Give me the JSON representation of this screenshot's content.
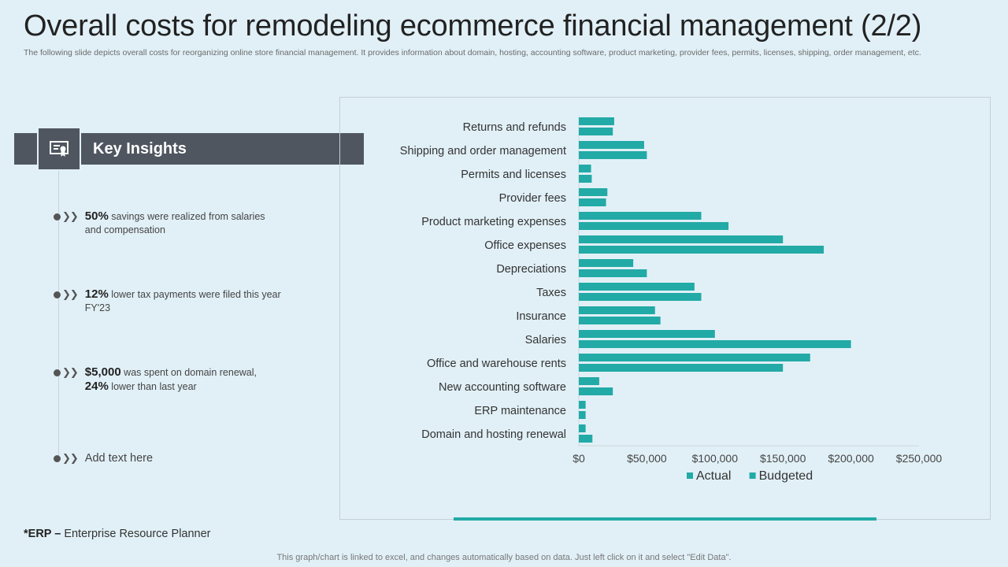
{
  "title": "Overall costs for remodeling ecommerce financial management (2/2)",
  "subtitle": "The following slide depicts overall costs for reorganizing online store financial management. It provides information about domain, hosting, accounting software, product marketing, provider fees, permits, licenses, shipping, order management, etc.",
  "insights": {
    "heading": "Key Insights",
    "items": [
      {
        "highlight": "50%",
        "text": " savings were realized from salaries and compensation"
      },
      {
        "highlight": "12%",
        "text": " lower tax payments were filed this year FY'23"
      },
      {
        "highlight": "$5,000",
        "text": " was spent on domain renewal,",
        "highlight2": "24%",
        "text2": " lower than last year"
      },
      {
        "text": "Add text here"
      }
    ]
  },
  "footnote": {
    "term": "*ERP –",
    "definition": " Enterprise Resource Planner"
  },
  "bottom_note": "This graph/chart is linked to excel,  and changes automatically based on data. Just left click on it and select \"Edit Data\".",
  "colors": {
    "bar": "#22aaa6",
    "dark": "#4f5660",
    "background": "#e1f0f7"
  },
  "chart_data": {
    "type": "bar",
    "orientation": "horizontal",
    "categories": [
      "Returns and refunds",
      "Shipping and order management",
      "Permits and licenses",
      "Provider fees",
      "Product marketing expenses",
      "Office expenses",
      "Depreciations",
      "Taxes",
      "Insurance",
      "Salaries",
      "Office and warehouse rents",
      "New accounting software",
      "ERP maintenance",
      "Domain and hosting renewal"
    ],
    "series": [
      {
        "name": "Actual",
        "values": [
          26000,
          48000,
          9000,
          21000,
          90000,
          150000,
          40000,
          85000,
          56000,
          100000,
          170000,
          15000,
          5000,
          5000
        ]
      },
      {
        "name": "Budgeted",
        "values": [
          25000,
          50000,
          9500,
          20000,
          110000,
          180000,
          50000,
          90000,
          60000,
          200000,
          150000,
          25000,
          5000,
          10000
        ]
      }
    ],
    "xlim": [
      0,
      250000
    ],
    "xticks": [
      "$0",
      "$50,000",
      "$100,000",
      "$150,000",
      "$200,000",
      "$250,000"
    ],
    "xtick_values": [
      0,
      50000,
      100000,
      150000,
      200000,
      250000
    ],
    "legend": [
      "Actual",
      "Budgeted"
    ],
    "legend_position": "bottom",
    "grid": false
  }
}
